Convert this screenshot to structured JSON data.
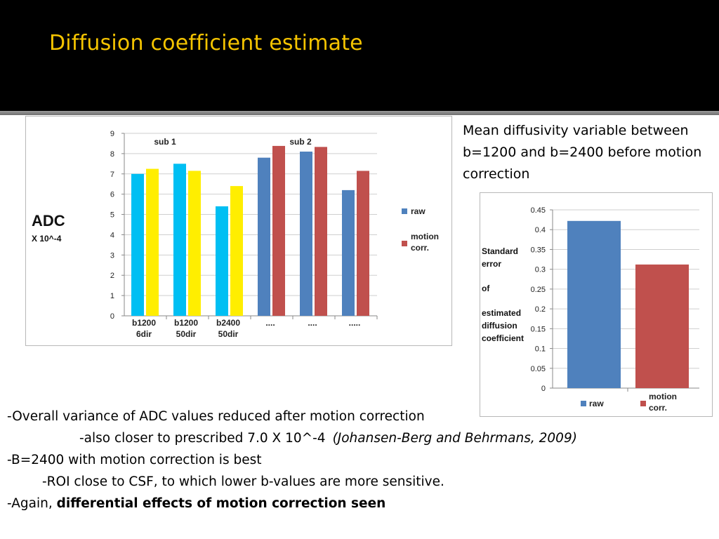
{
  "slide": {
    "title": "Diffusion coefficient estimate",
    "note": "Mean diffusivity variable between b=1200 and b=2400 before motion correction",
    "bullets": {
      "b1": "-Overall variance of ADC values reduced after motion correction",
      "b2": "-also closer to prescribed 7.0 X 10^-4",
      "b2_cite": "(Johansen-Berg and Behrmans, 2009)",
      "b3": "-B=2400 with motion correction is best",
      "b4": "-ROI close to CSF, to which lower b-values are more sensitive.",
      "b5_prefix": "-Again,",
      "b5_bold": "differential effects of motion correction seen"
    }
  },
  "colors": {
    "title": "#f5c400",
    "cyan": "#00bff3",
    "yellow": "#ffee00",
    "raw": "#4f81bd",
    "motion": "#c0504d"
  },
  "chart_data": [
    {
      "type": "bar",
      "ylabel": "ADC",
      "ylabel_sub": "X 10^-4",
      "ylim": [
        0,
        9
      ],
      "yticks": [
        "0",
        "1",
        "2",
        "3",
        "4",
        "5",
        "6",
        "7",
        "8",
        "9"
      ],
      "groups": [
        {
          "line1": "b1200",
          "line2": "6dir"
        },
        {
          "line1": "b1200",
          "line2": "50dir"
        },
        {
          "line1": "b2400",
          "line2": "50dir"
        },
        {
          "line1": "....",
          "line2": ""
        },
        {
          "line1": "....",
          "line2": ""
        },
        {
          "line1": ".....",
          "line2": ""
        }
      ],
      "subject_labels": [
        "sub 1",
        "sub 2"
      ],
      "series": [
        {
          "name": "raw",
          "values": [
            7.0,
            7.5,
            5.4,
            7.8,
            8.1,
            6.2
          ]
        },
        {
          "name": "motion corr.",
          "values": [
            7.25,
            7.15,
            6.4,
            8.38,
            8.33,
            7.15
          ]
        }
      ],
      "legend": [
        {
          "line1": "raw",
          "line2": ""
        },
        {
          "line1": "motion",
          "line2": "corr."
        }
      ],
      "grid": true,
      "legend_position": "right"
    },
    {
      "type": "bar",
      "ylabel_lines": [
        "Standard",
        "error",
        "of",
        "estimated",
        "diffusion",
        "coefficient"
      ],
      "ylim": [
        0,
        0.45
      ],
      "yticks": [
        "0",
        "0.05",
        "0.1",
        "0.15",
        "0.2",
        "0.25",
        "0.3",
        "0.35",
        "0.4",
        "0.45"
      ],
      "series": [
        {
          "name": "raw",
          "values": [
            0.422
          ]
        },
        {
          "name": "motion corr.",
          "values": [
            0.312
          ]
        }
      ],
      "legend": [
        {
          "line1": "raw",
          "line2": ""
        },
        {
          "line1": "motion",
          "line2": "corr."
        }
      ],
      "grid": true,
      "legend_position": "bottom"
    }
  ]
}
